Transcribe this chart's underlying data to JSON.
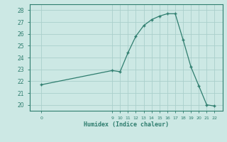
{
  "xlabel": "Humidex (Indice chaleur)",
  "x_values": [
    0,
    9,
    10,
    11,
    12,
    13,
    14,
    15,
    16,
    17,
    18,
    19,
    20,
    21,
    22
  ],
  "y_values": [
    21.7,
    22.9,
    22.8,
    24.4,
    25.8,
    26.7,
    27.2,
    27.5,
    27.7,
    27.7,
    25.5,
    23.2,
    21.6,
    20.0,
    19.9
  ],
  "line_color": "#2e7d6e",
  "marker": "+",
  "bg_color": "#cce8e4",
  "grid_color": "#aacfcb",
  "axis_color": "#2e7d6e",
  "tick_label_color": "#2e7d6e",
  "xlabel_color": "#2e7d6e",
  "ylim": [
    19.5,
    28.5
  ],
  "yticks": [
    20,
    21,
    22,
    23,
    24,
    25,
    26,
    27,
    28
  ],
  "xlim": [
    -1.5,
    23
  ],
  "xticks": [
    0,
    9,
    10,
    11,
    12,
    13,
    14,
    15,
    16,
    17,
    18,
    19,
    20,
    21,
    22
  ]
}
